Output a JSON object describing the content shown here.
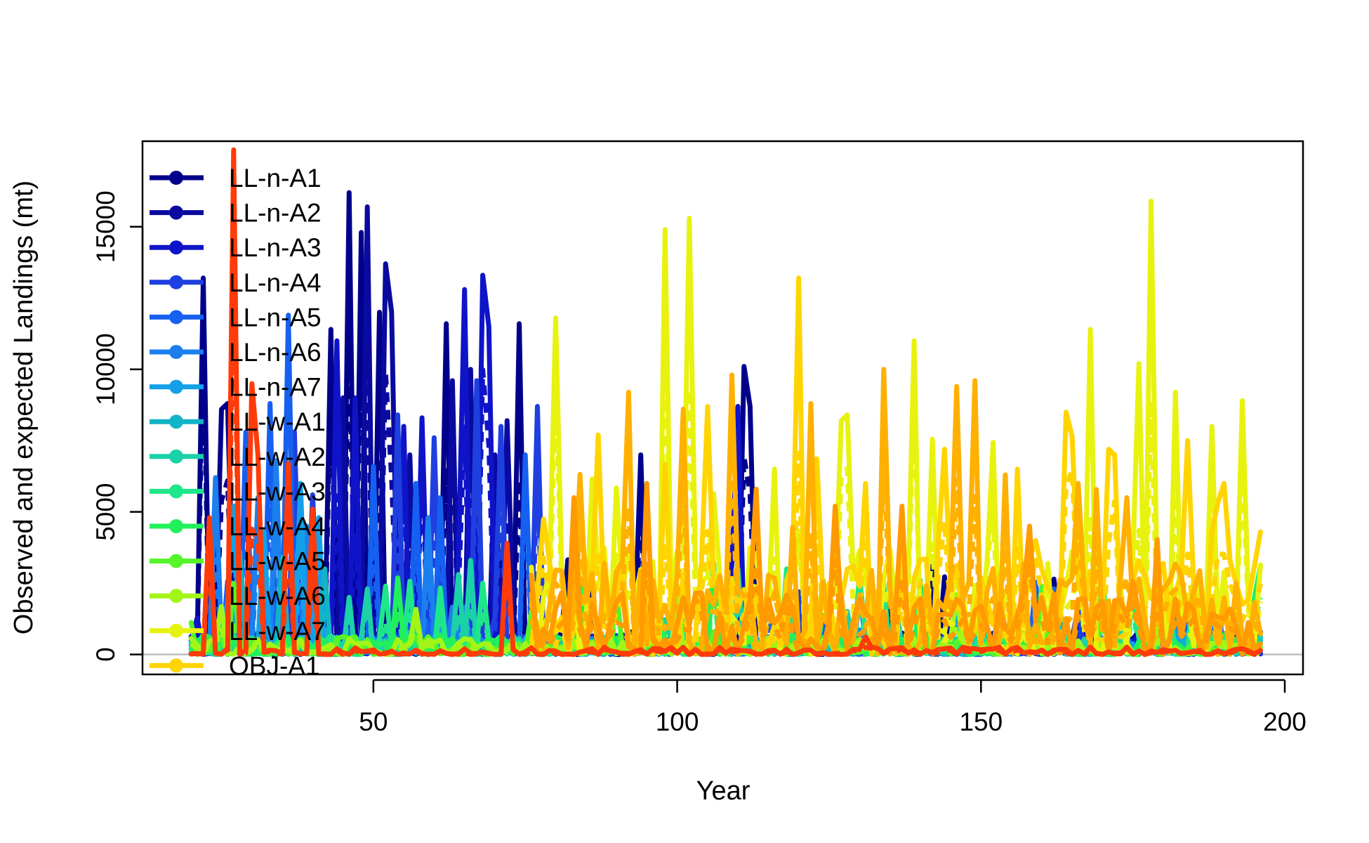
{
  "chart_data": {
    "type": "line",
    "title": "",
    "xlabel": "Year",
    "ylabel": "Observed and expected Landings (mt)",
    "xlim": [
      12,
      203
    ],
    "ylim": [
      -700,
      18000
    ],
    "xticks": [
      50,
      100,
      150,
      200
    ],
    "yticks": [
      0,
      5000,
      10000,
      15000
    ],
    "xtick_labels": [
      "50",
      "100",
      "150",
      "200"
    ],
    "ytick_labels": [
      "0",
      "5000",
      "10000",
      "15000"
    ],
    "grid": false,
    "zero_line": {
      "value": 0,
      "color": "#bebebe"
    },
    "legend": {
      "position": "top-left",
      "visible_entries": 15
    },
    "observed_style": "solid",
    "expected_style": "dashed",
    "series": [
      {
        "name": "LL-n-A1",
        "color": "#00008b",
        "x_start": 20,
        "x_end": 196,
        "seed": 11,
        "base": 350,
        "scale": 450,
        "spike_prob": 0.08,
        "spike_max": 3000,
        "peaks": [
          [
            22,
            13200
          ],
          [
            25,
            8600
          ],
          [
            26,
            8800
          ],
          [
            43,
            11400
          ],
          [
            46,
            16200
          ],
          [
            48,
            14800
          ],
          [
            51,
            12000
          ],
          [
            62,
            11600
          ],
          [
            74,
            11600
          ],
          [
            94,
            7000
          ],
          [
            111,
            10100
          ],
          [
            112,
            8700
          ]
        ]
      },
      {
        "name": "LL-n-A2",
        "color": "#0a0aa0",
        "x_start": 20,
        "x_end": 196,
        "seed": 12,
        "base": 300,
        "scale": 420,
        "spike_prob": 0.07,
        "spike_max": 2600,
        "peaks": [
          [
            45,
            9000
          ],
          [
            49,
            15700
          ],
          [
            52,
            13700
          ],
          [
            53,
            12000
          ],
          [
            56,
            7000
          ],
          [
            63,
            9600
          ],
          [
            66,
            10000
          ],
          [
            70,
            7000
          ],
          [
            72,
            8200
          ]
        ]
      },
      {
        "name": "LL-n-A3",
        "color": "#0f14c8",
        "x_start": 20,
        "x_end": 196,
        "seed": 13,
        "base": 300,
        "scale": 420,
        "spike_prob": 0.07,
        "spike_max": 2600,
        "peaks": [
          [
            44,
            11000
          ],
          [
            47,
            9000
          ],
          [
            55,
            8000
          ],
          [
            58,
            8300
          ],
          [
            65,
            12800
          ],
          [
            68,
            13300
          ],
          [
            69,
            11500
          ],
          [
            110,
            8700
          ]
        ]
      },
      {
        "name": "LL-n-A4",
        "color": "#1f3fe0",
        "x_start": 20,
        "x_end": 196,
        "seed": 14,
        "base": 280,
        "scale": 380,
        "spike_prob": 0.06,
        "spike_max": 2200,
        "peaks": [
          [
            37,
            7800
          ],
          [
            40,
            5600
          ],
          [
            54,
            8400
          ],
          [
            60,
            7600
          ],
          [
            67,
            9600
          ],
          [
            71,
            8000
          ],
          [
            77,
            8700
          ]
        ]
      },
      {
        "name": "LL-n-A5",
        "color": "#1560f0",
        "x_start": 20,
        "x_end": 196,
        "seed": 15,
        "base": 260,
        "scale": 360,
        "spike_prob": 0.06,
        "spike_max": 2000,
        "peaks": [
          [
            29,
            7800
          ],
          [
            33,
            8800
          ],
          [
            36,
            11900
          ],
          [
            50,
            6600
          ],
          [
            57,
            6000
          ],
          [
            61,
            5500
          ],
          [
            75,
            7000
          ]
        ]
      },
      {
        "name": "LL-n-A6",
        "color": "#1b7fee",
        "x_start": 20,
        "x_end": 196,
        "seed": 16,
        "base": 220,
        "scale": 320,
        "spike_prob": 0.05,
        "spike_max": 1800,
        "peaks": [
          [
            24,
            6200
          ],
          [
            31,
            5500
          ],
          [
            34,
            6800
          ],
          [
            39,
            4500
          ],
          [
            59,
            4800
          ]
        ]
      },
      {
        "name": "LL-n-A7",
        "color": "#13a0e8",
        "x_start": 20,
        "x_end": 196,
        "seed": 17,
        "base": 200,
        "scale": 300,
        "spike_prob": 0.05,
        "spike_max": 1600,
        "peaks": [
          [
            27,
            5200
          ],
          [
            32,
            4300
          ],
          [
            38,
            6000
          ],
          [
            41,
            4800
          ]
        ]
      },
      {
        "name": "LL-w-A1",
        "color": "#12b4c8",
        "x_start": 20,
        "x_end": 196,
        "seed": 18,
        "base": 200,
        "scale": 280,
        "spike_prob": 0.05,
        "spike_max": 1500,
        "peaks": [
          [
            28,
            3600
          ],
          [
            35,
            3400
          ],
          [
            42,
            3000
          ]
        ]
      },
      {
        "name": "LL-w-A2",
        "color": "#1ad1a8",
        "x_start": 20,
        "x_end": 196,
        "seed": 19,
        "base": 220,
        "scale": 300,
        "spike_prob": 0.06,
        "spike_max": 1800,
        "peaks": [
          [
            46,
            2000
          ],
          [
            49,
            2300
          ],
          [
            64,
            2800
          ],
          [
            66,
            3300
          ],
          [
            110,
            3000
          ],
          [
            150,
            2200
          ]
        ]
      },
      {
        "name": "LL-w-A3",
        "color": "#1ee68a",
        "x_start": 20,
        "x_end": 196,
        "seed": 20,
        "base": 260,
        "scale": 320,
        "spike_prob": 0.07,
        "spike_max": 2200,
        "peaks": [
          [
            52,
            2400
          ],
          [
            68,
            2500
          ],
          [
            118,
            3000
          ],
          [
            130,
            2800
          ],
          [
            185,
            2500
          ]
        ]
      },
      {
        "name": "LL-w-A4",
        "color": "#22f05a",
        "x_start": 20,
        "x_end": 196,
        "seed": 21,
        "base": 260,
        "scale": 330,
        "spike_prob": 0.07,
        "spike_max": 2400,
        "peaks": [
          [
            84,
            2600
          ],
          [
            106,
            3200
          ],
          [
            140,
            2600
          ],
          [
            170,
            2800
          ],
          [
            196,
            3100
          ]
        ]
      },
      {
        "name": "LL-w-A5",
        "color": "#55f52a",
        "x_start": 20,
        "x_end": 196,
        "seed": 22,
        "base": 240,
        "scale": 300,
        "spike_prob": 0.06,
        "spike_max": 2200,
        "peaks": [
          [
            90,
            2300
          ],
          [
            124,
            2600
          ],
          [
            160,
            2400
          ]
        ]
      },
      {
        "name": "LL-w-A6",
        "color": "#a3f518",
        "x_start": 20,
        "x_end": 196,
        "seed": 23,
        "base": 220,
        "scale": 290,
        "spike_prob": 0.06,
        "spike_max": 2000,
        "peaks": [
          [
            100,
            2200
          ],
          [
            146,
            2100
          ],
          [
            180,
            2300
          ]
        ]
      },
      {
        "name": "LL-w-A7",
        "color": "#e8f20f",
        "x_start": 76,
        "x_end": 196,
        "seed": 24,
        "base": 1800,
        "scale": 1500,
        "spike_prob": 0.1,
        "spike_max": 6000,
        "peaks": [
          [
            80,
            11800
          ],
          [
            98,
            14900
          ],
          [
            102,
            15300
          ],
          [
            116,
            6500
          ],
          [
            127,
            8200
          ],
          [
            128,
            8400
          ],
          [
            139,
            11000
          ],
          [
            168,
            11400
          ],
          [
            176,
            10200
          ],
          [
            178,
            15900
          ],
          [
            182,
            9200
          ],
          [
            188,
            8000
          ],
          [
            193,
            8900
          ]
        ]
      },
      {
        "name": "OBJ-A1",
        "color": "#ffd400",
        "x_start": 76,
        "x_end": 196,
        "seed": 25,
        "base": 1600,
        "scale": 1400,
        "spike_prob": 0.1,
        "spike_max": 5500,
        "peaks": [
          [
            87,
            7700
          ],
          [
            105,
            8700
          ],
          [
            120,
            13200
          ],
          [
            131,
            6000
          ],
          [
            144,
            7200
          ],
          [
            156,
            6500
          ],
          [
            164,
            8500
          ],
          [
            172,
            7000
          ],
          [
            184,
            7500
          ],
          [
            190,
            6000
          ],
          [
            196,
            4300
          ]
        ]
      },
      {
        "name": "",
        "color": "#ffb000",
        "x_start": 76,
        "x_end": 196,
        "seed": 26,
        "base": 1500,
        "scale": 1300,
        "spike_prob": 0.1,
        "spike_max": 5000,
        "peaks": [
          [
            92,
            9200
          ],
          [
            101,
            8600
          ],
          [
            109,
            9800
          ],
          [
            122,
            8800
          ],
          [
            134,
            10000
          ],
          [
            146,
            9400
          ],
          [
            149,
            9600
          ],
          [
            154,
            6300
          ],
          [
            166,
            6000
          ],
          [
            174,
            5500
          ]
        ]
      },
      {
        "name": "",
        "color": "#ff9a00",
        "x_start": 76,
        "x_end": 196,
        "seed": 27,
        "base": 1000,
        "scale": 900,
        "spike_prob": 0.08,
        "spike_max": 3500,
        "peaks": [
          [
            83,
            5500
          ],
          [
            95,
            6000
          ],
          [
            113,
            5800
          ],
          [
            137,
            5200
          ],
          [
            158,
            4500
          ]
        ]
      },
      {
        "name": "",
        "color": "#ff3b0a",
        "x_start": 20,
        "x_end": 196,
        "seed": 28,
        "base": 80,
        "scale": 140,
        "spike_prob": 0.03,
        "spike_max": 600,
        "peaks": [
          [
            23,
            4800
          ],
          [
            27,
            17700
          ],
          [
            30,
            9500
          ],
          [
            31,
            7000
          ],
          [
            36,
            6700
          ],
          [
            40,
            5100
          ],
          [
            72,
            3900
          ]
        ]
      }
    ]
  }
}
